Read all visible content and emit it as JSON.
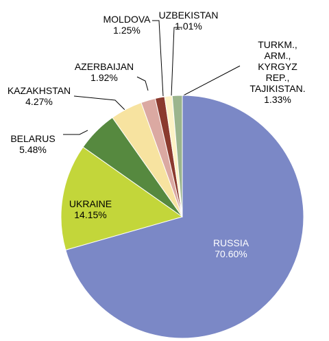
{
  "chart_data": {
    "type": "pie",
    "categories": [
      "RUSSIA",
      "UKRAINE",
      "BELARUS",
      "KAZAKHSTAN",
      "AZERBAIJAN",
      "MOLDOVA",
      "UZBEKISTAN",
      "TURKM., ARM.,\nKYRGYZ REP.,\nTAJIKISTAN."
    ],
    "values": [
      70.6,
      14.15,
      5.48,
      4.27,
      1.92,
      1.25,
      1.01,
      1.33
    ],
    "value_labels": [
      "70.60%",
      "14.15%",
      "5.48%",
      "4.27%",
      "1.92%",
      "1.25%",
      "1.01%",
      "1.33%"
    ],
    "colors": [
      "#7b88c6",
      "#c3d63a",
      "#56893f",
      "#f7e3a0",
      "#dba9a2",
      "#8b3a2e",
      "#fdf3c6",
      "#9bb58d"
    ]
  }
}
